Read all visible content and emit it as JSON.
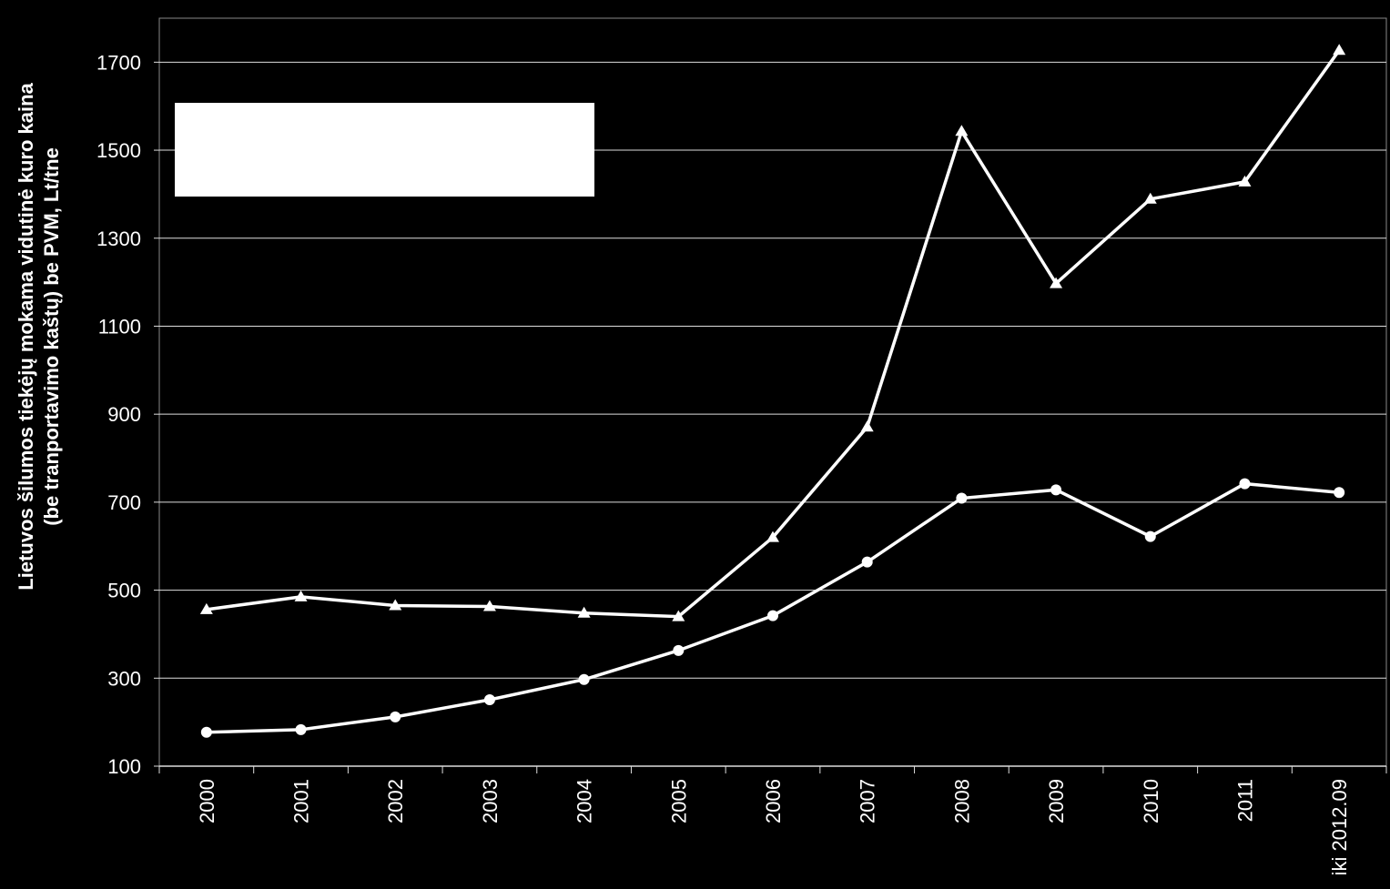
{
  "chart_data": {
    "type": "line",
    "y_label": [
      "Lietuvos šilumos tiekėjų mokama  vidutinė kuro kaina",
      "(be tranportavimo kaštų) be PVM,  Lt/tne"
    ],
    "categories": [
      "2000",
      "2001",
      "2002",
      "2003",
      "2004",
      "2005",
      "2006",
      "2007",
      "2008",
      "2009",
      "2010",
      "2011",
      "iki 2012.09"
    ],
    "series": [
      {
        "color": "#ffffff",
        "marker": "triangle",
        "values": [
          456,
          485,
          465,
          463,
          448,
          440,
          620,
          871,
          1543,
          1197,
          1389,
          1428,
          1727
        ]
      },
      {
        "color": "#ffffff",
        "marker": "circle",
        "values": [
          177,
          183,
          212,
          251,
          297,
          363,
          442,
          564,
          709,
          728,
          622,
          742,
          722
        ]
      }
    ],
    "ylim": [
      100,
      1800
    ],
    "yticks": [
      100,
      300,
      500,
      700,
      900,
      1100,
      1300,
      1500,
      1700
    ],
    "grid": true
  }
}
